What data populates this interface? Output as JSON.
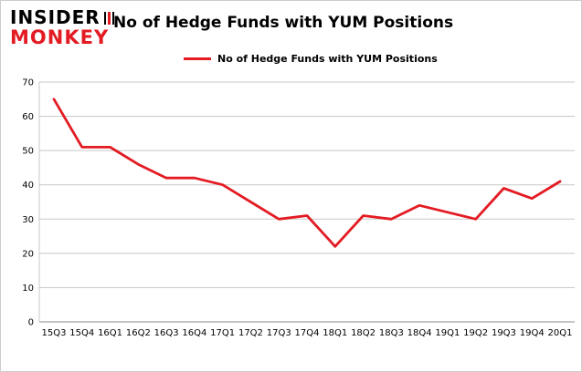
{
  "header": {
    "logo": {
      "line1": "INSIDER",
      "line2": "MONKEY"
    },
    "title": "No of Hedge Funds with YUM Positions"
  },
  "legend": {
    "label": "No of Hedge Funds with YUM Positions",
    "color": "#e31b23"
  },
  "chart_data": {
    "type": "line",
    "title": "No of Hedge Funds with YUM Positions",
    "categories": [
      "15Q3",
      "15Q4",
      "16Q1",
      "16Q2",
      "16Q3",
      "16Q4",
      "17Q1",
      "17Q2",
      "17Q3",
      "17Q4",
      "18Q1",
      "18Q2",
      "18Q3",
      "18Q4",
      "19Q1",
      "19Q2",
      "19Q3",
      "19Q4",
      "20Q1"
    ],
    "values": [
      65,
      51,
      51,
      46,
      42,
      42,
      40,
      35,
      30,
      31,
      22,
      31,
      30,
      34,
      32,
      30,
      39,
      36,
      41
    ],
    "xlabel": "",
    "ylabel": "",
    "ylim": [
      0,
      70
    ],
    "yticks": [
      0,
      10,
      20,
      30,
      40,
      50,
      60,
      70
    ],
    "grid": true,
    "legend_position": "top",
    "line_color": "#e31b23",
    "grid_color": "#c8c8c8"
  }
}
